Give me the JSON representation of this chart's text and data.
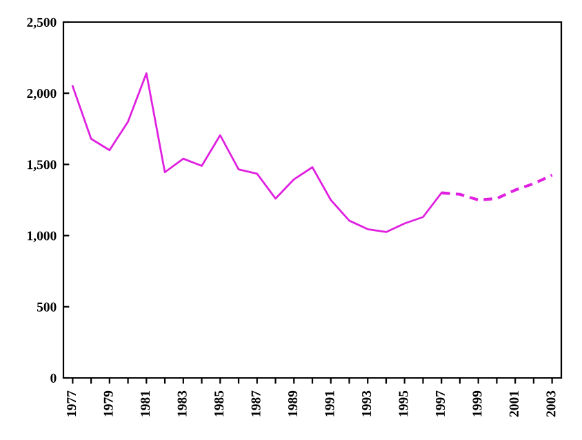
{
  "chart_data": {
    "type": "line",
    "series": [
      {
        "color": "#e020e0",
        "line_style": "solid",
        "x": [
          1977,
          1978,
          1979,
          1980,
          1981,
          1982,
          1983,
          1984,
          1985,
          1986,
          1987,
          1988,
          1989,
          1990,
          1991,
          1992,
          1993,
          1994,
          1995,
          1996,
          1997
        ],
        "values": [
          2050,
          1680,
          1600,
          1800,
          2140,
          1445,
          1540,
          1490,
          1705,
          1465,
          1435,
          1260,
          1395,
          1480,
          1250,
          1105,
          1045,
          1025,
          1085,
          1130,
          1300
        ]
      },
      {
        "color": "#e020e0",
        "line_style": "dashed",
        "x": [
          1997,
          1998,
          1999,
          2000,
          2001,
          2002,
          2003
        ],
        "values": [
          1300,
          1290,
          1250,
          1260,
          1320,
          1365,
          1425
        ]
      }
    ],
    "xlim": [
      1976.5,
      2003.5
    ],
    "xticks": [
      1977,
      {
        "value": 1978,
        "label": null
      },
      1979,
      {
        "value": 1980,
        "label": null
      },
      1981,
      {
        "value": 1982,
        "label": null
      },
      1983,
      {
        "value": 1984,
        "label": null
      },
      1985,
      {
        "value": 1986,
        "label": null
      },
      1987,
      {
        "value": 1988,
        "label": null
      },
      1989,
      {
        "value": 1990,
        "label": null
      },
      1991,
      {
        "value": 1992,
        "label": null
      },
      1993,
      {
        "value": 1994,
        "label": null
      },
      1995,
      {
        "value": 1996,
        "label": null
      },
      1997,
      {
        "value": 1998,
        "label": null
      },
      1999,
      {
        "value": 2000,
        "label": null
      },
      2001,
      {
        "value": 2002,
        "label": null
      },
      2003
    ],
    "ylim": [
      0,
      2500
    ],
    "yticks": [
      {
        "value": 0,
        "label": "0"
      },
      {
        "value": 500,
        "label": "500"
      },
      {
        "value": 1000,
        "label": "1,000"
      },
      {
        "value": 1500,
        "label": "1,500"
      },
      {
        "value": 2000,
        "label": "2,000"
      },
      {
        "value": 2500,
        "label": "2,500"
      }
    ],
    "grid": false,
    "legend": false,
    "marker": "none"
  }
}
